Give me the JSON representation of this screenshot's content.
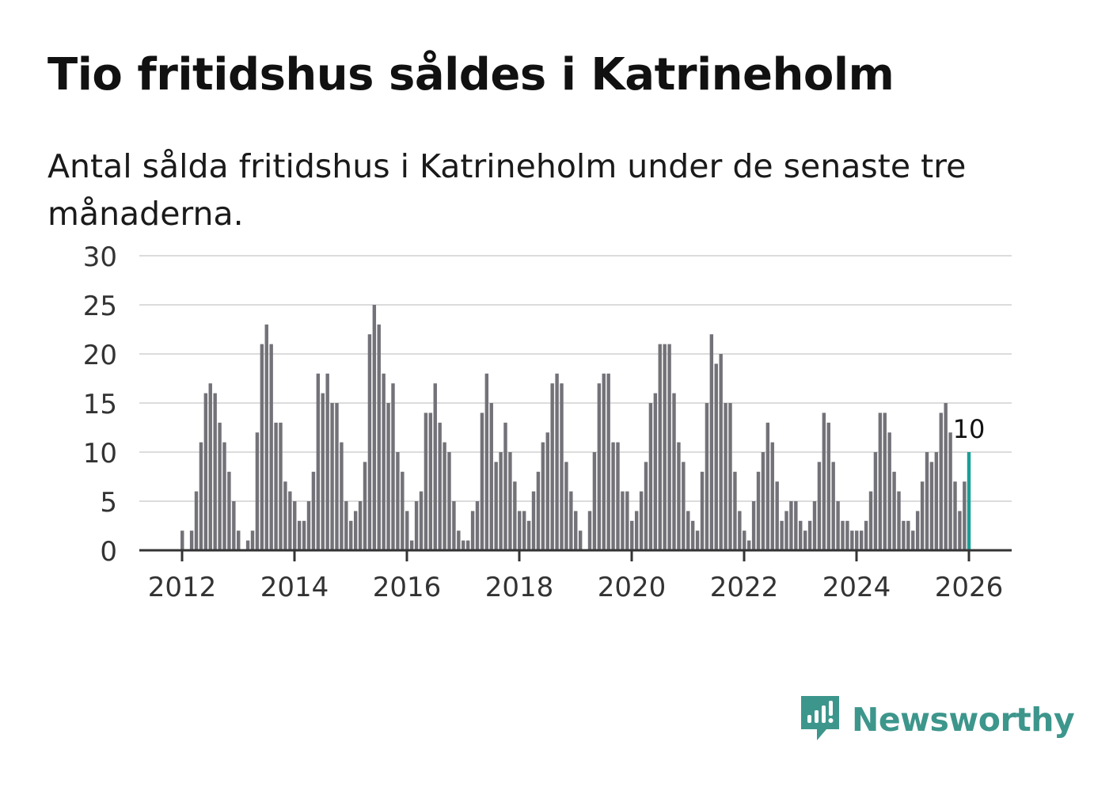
{
  "title": "Tio fritidshus såldes i Katrineholm",
  "subtitle": "Antal sålda fritidshus i Katrineholm under de senaste tre månaderna.",
  "brand": {
    "name": "Newsworthy",
    "icon": "newsworthy-bar-chart-icon",
    "color": "#3d968c"
  },
  "colors": {
    "bar": "#737278",
    "highlight": "#1a9e96",
    "grid": "#dcdcdc",
    "axis": "#333333"
  },
  "chart_data": {
    "type": "bar",
    "title": "Tio fritidshus såldes i Katrineholm",
    "xlabel": "",
    "ylabel": "",
    "ylim": [
      0,
      30
    ],
    "yticks": [
      "0",
      "5",
      "10",
      "15",
      "20",
      "25",
      "30"
    ],
    "xticks": [
      "2012",
      "2014",
      "2016",
      "2018",
      "2020",
      "2022",
      "2024",
      "2026"
    ],
    "xtick_values": [
      2012,
      2014,
      2016,
      2018,
      2020,
      2022,
      2024,
      2026
    ],
    "grid": true,
    "highlight_label": "10",
    "categories": [
      "2012-01",
      "2012-02",
      "2012-03",
      "2012-04",
      "2012-05",
      "2012-06",
      "2012-07",
      "2012-08",
      "2012-09",
      "2012-10",
      "2012-11",
      "2012-12",
      "2013-01",
      "2013-02",
      "2013-03",
      "2013-04",
      "2013-05",
      "2013-06",
      "2013-07",
      "2013-08",
      "2013-09",
      "2013-10",
      "2013-11",
      "2013-12",
      "2014-01",
      "2014-02",
      "2014-03",
      "2014-04",
      "2014-05",
      "2014-06",
      "2014-07",
      "2014-08",
      "2014-09",
      "2014-10",
      "2014-11",
      "2014-12",
      "2015-01",
      "2015-02",
      "2015-03",
      "2015-04",
      "2015-05",
      "2015-06",
      "2015-07",
      "2015-08",
      "2015-09",
      "2015-10",
      "2015-11",
      "2015-12",
      "2016-01",
      "2016-02",
      "2016-03",
      "2016-04",
      "2016-05",
      "2016-06",
      "2016-07",
      "2016-08",
      "2016-09",
      "2016-10",
      "2016-11",
      "2016-12",
      "2017-01",
      "2017-02",
      "2017-03",
      "2017-04",
      "2017-05",
      "2017-06",
      "2017-07",
      "2017-08",
      "2017-09",
      "2017-10",
      "2017-11",
      "2017-12",
      "2018-01",
      "2018-02",
      "2018-03",
      "2018-04",
      "2018-05",
      "2018-06",
      "2018-07",
      "2018-08",
      "2018-09",
      "2018-10",
      "2018-11",
      "2018-12",
      "2019-01",
      "2019-02",
      "2019-03",
      "2019-04",
      "2019-05",
      "2019-06",
      "2019-07",
      "2019-08",
      "2019-09",
      "2019-10",
      "2019-11",
      "2019-12",
      "2020-01",
      "2020-02",
      "2020-03",
      "2020-04",
      "2020-05",
      "2020-06",
      "2020-07",
      "2020-08",
      "2020-09",
      "2020-10",
      "2020-11",
      "2020-12",
      "2021-01",
      "2021-02",
      "2021-03",
      "2021-04",
      "2021-05",
      "2021-06",
      "2021-07",
      "2021-08",
      "2021-09",
      "2021-10",
      "2021-11",
      "2021-12",
      "2022-01",
      "2022-02",
      "2022-03",
      "2022-04",
      "2022-05",
      "2022-06",
      "2022-07",
      "2022-08",
      "2022-09",
      "2022-10",
      "2022-11",
      "2022-12",
      "2023-01",
      "2023-02",
      "2023-03",
      "2023-04",
      "2023-05",
      "2023-06",
      "2023-07",
      "2023-08",
      "2023-09",
      "2023-10",
      "2023-11",
      "2023-12",
      "2024-01",
      "2024-02",
      "2024-03",
      "2024-04",
      "2024-05",
      "2024-06",
      "2024-07",
      "2024-08",
      "2024-09",
      "2024-10",
      "2024-11",
      "2024-12",
      "2025-01",
      "2025-02",
      "2025-03",
      "2025-04",
      "2025-05",
      "2025-06",
      "2025-07",
      "2025-08",
      "2025-09",
      "2025-10",
      "2025-11",
      "2025-12"
    ],
    "values": [
      2,
      0,
      2,
      6,
      11,
      16,
      17,
      16,
      13,
      11,
      8,
      5,
      2,
      0,
      1,
      2,
      12,
      21,
      23,
      21,
      13,
      13,
      7,
      6,
      5,
      3,
      3,
      5,
      8,
      18,
      16,
      18,
      15,
      15,
      11,
      5,
      3,
      4,
      5,
      9,
      22,
      25,
      23,
      18,
      15,
      17,
      10,
      8,
      4,
      1,
      5,
      6,
      14,
      14,
      17,
      13,
      11,
      10,
      5,
      2,
      1,
      1,
      4,
      5,
      14,
      18,
      15,
      9,
      10,
      13,
      10,
      7,
      4,
      4,
      3,
      6,
      8,
      11,
      12,
      17,
      18,
      17,
      9,
      6,
      4,
      2,
      0,
      4,
      10,
      17,
      18,
      18,
      11,
      11,
      6,
      6,
      3,
      4,
      6,
      9,
      15,
      16,
      21,
      21,
      21,
      16,
      11,
      9,
      4,
      3,
      2,
      8,
      15,
      22,
      19,
      20,
      15,
      15,
      8,
      4,
      2,
      1,
      5,
      8,
      10,
      13,
      11,
      7,
      3,
      4,
      5,
      5,
      3,
      2,
      3,
      5,
      9,
      14,
      13,
      9,
      5,
      3,
      3,
      2,
      2,
      2,
      3,
      6,
      10,
      14,
      14,
      12,
      8,
      6,
      3,
      3,
      2,
      4,
      7,
      10,
      9,
      10,
      14,
      15,
      12,
      7,
      4,
      7
    ],
    "highlight": {
      "category": "2026-01",
      "value": 10
    }
  }
}
